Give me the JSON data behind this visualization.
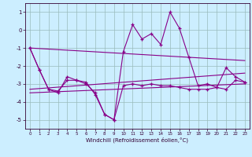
{
  "x": [
    0,
    1,
    2,
    3,
    4,
    5,
    6,
    7,
    8,
    9,
    10,
    11,
    12,
    13,
    14,
    15,
    16,
    17,
    18,
    19,
    20,
    21,
    22,
    23
  ],
  "line1": [
    -1.0,
    -2.2,
    -3.3,
    -3.5,
    -2.6,
    -2.8,
    -2.9,
    -3.6,
    -4.7,
    -5.0,
    -1.2,
    0.3,
    -0.5,
    -0.2,
    -0.8,
    1.0,
    0.1,
    -1.5,
    -3.1,
    -3.0,
    -3.2,
    -2.1,
    -2.6,
    -2.9
  ],
  "line2": [
    -1.0,
    -2.2,
    -3.3,
    -3.4,
    -2.8,
    -2.8,
    -3.0,
    -3.5,
    -4.7,
    -5.0,
    -3.1,
    -3.0,
    -3.1,
    -3.0,
    -3.1,
    -3.1,
    -3.2,
    -3.3,
    -3.3,
    -3.3,
    -3.2,
    -3.3,
    -2.8,
    -2.9
  ],
  "line3_x": [
    0,
    23
  ],
  "line3_y": [
    -1.0,
    -1.7
  ],
  "line4_x": [
    0,
    23
  ],
  "line4_y": [
    -3.3,
    -2.4
  ],
  "line5_x": [
    0,
    23
  ],
  "line5_y": [
    -3.5,
    -3.0
  ],
  "color": "#880088",
  "bg_color": "#cceeff",
  "grid_color": "#99bbbb",
  "xlabel": "Windchill (Refroidissement éolien,°C)",
  "xlim": [
    -0.5,
    23.5
  ],
  "ylim": [
    -5.5,
    1.5
  ],
  "yticks": [
    -5,
    -4,
    -3,
    -2,
    -1,
    0,
    1
  ],
  "xticks": [
    0,
    1,
    2,
    3,
    4,
    5,
    6,
    7,
    8,
    9,
    10,
    11,
    12,
    13,
    14,
    15,
    16,
    17,
    18,
    19,
    20,
    21,
    22,
    23
  ]
}
